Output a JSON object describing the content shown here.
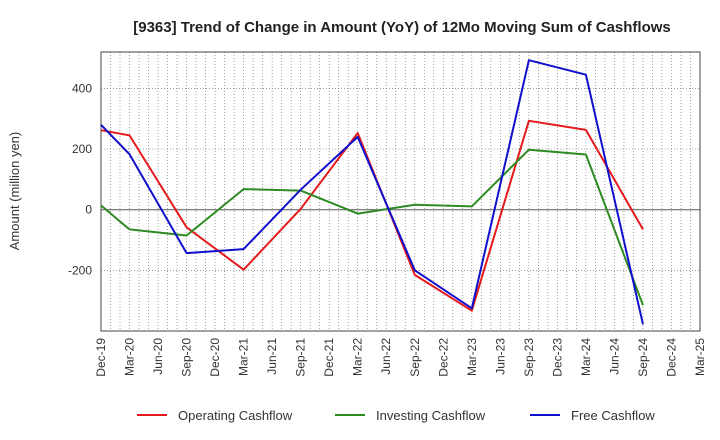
{
  "chart_data": {
    "type": "line",
    "title": "[9363]  Trend of Change in Amount (YoY) of 12Mo Moving Sum of Cashflows",
    "xlabel": "",
    "ylabel": "Amount (million yen)",
    "categories": [
      "Dec-19",
      "Mar-20",
      "Jun-20",
      "Sep-20",
      "Dec-20",
      "Mar-21",
      "Jun-21",
      "Sep-21",
      "Dec-21",
      "Mar-22",
      "Jun-22",
      "Sep-22",
      "Dec-22",
      "Mar-23",
      "Jun-23",
      "Sep-23",
      "Dec-23",
      "Mar-24",
      "Jun-24",
      "Sep-24",
      "Dec-24",
      "Mar-25"
    ],
    "ylim": [
      -400,
      520
    ],
    "yticks": [
      -200,
      0,
      200,
      400
    ],
    "grid": true,
    "legend_position": "bottom",
    "series": [
      {
        "name": "Operating Cashflow",
        "color": "#e41a1c",
        "values": [
          262,
          245,
          null,
          -58,
          null,
          -198,
          null,
          3,
          null,
          253,
          null,
          -215,
          null,
          -333,
          null,
          293,
          null,
          263,
          null,
          -65,
          null,
          null
        ]
      },
      {
        "name": "Investing Cashflow",
        "color": "#2e8b22",
        "values": [
          14,
          -65,
          null,
          -85,
          null,
          68,
          null,
          63,
          null,
          -13,
          null,
          16,
          null,
          11,
          null,
          198,
          null,
          182,
          null,
          -315,
          null,
          null
        ]
      },
      {
        "name": "Free Cashflow",
        "color": "#1010cc",
        "values": [
          280,
          183,
          null,
          -143,
          null,
          -130,
          null,
          66,
          null,
          240,
          null,
          -200,
          null,
          -325,
          null,
          493,
          null,
          445,
          null,
          -378,
          null,
          null
        ]
      }
    ]
  }
}
